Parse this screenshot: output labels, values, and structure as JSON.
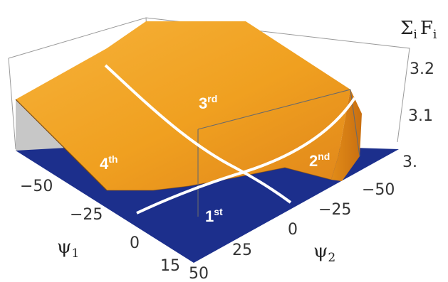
{
  "chart_data": {
    "type": "surface3d",
    "z_axis": {
      "label_main": "Σ",
      "label_sub_i": "i",
      "label_F": "F",
      "label_sub_i2": "i",
      "ticks": [
        "3.2",
        "3.1",
        "3."
      ],
      "range": [
        3.0,
        3.2
      ]
    },
    "psi1_axis": {
      "label_main": "ψ",
      "label_sub": "1",
      "ticks": [
        "−50",
        "−25",
        "0",
        "15"
      ],
      "range": [
        -60,
        20
      ]
    },
    "psi2_axis": {
      "label_main": "ψ",
      "label_sub": "2",
      "ticks": [
        "−50",
        "−25",
        "0",
        "25",
        "50"
      ],
      "range": [
        -60,
        55
      ]
    },
    "regions": [
      {
        "main": "1",
        "sup": "st"
      },
      {
        "main": "2",
        "sup": "nd"
      },
      {
        "main": "3",
        "sup": "rd"
      },
      {
        "main": "4",
        "sup": "th"
      }
    ],
    "surface_color": "#f0a020",
    "plane_color": "#1c2f8c",
    "divider_color": "#ffffff"
  }
}
